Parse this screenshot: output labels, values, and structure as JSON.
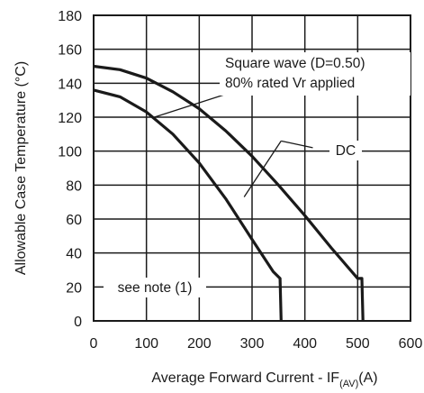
{
  "chart_data": {
    "type": "line",
    "title": "",
    "xlabel_main": "Average Forward Current - IF",
    "xlabel_sub": "(AV)",
    "xlabel_unit": "(A)",
    "ylabel": "Allowable Case Temperature  (°C)",
    "xlim": [
      0,
      600
    ],
    "ylim": [
      0,
      180
    ],
    "xticks": [
      "0",
      "100",
      "200",
      "300",
      "400",
      "500",
      "600"
    ],
    "yticks": [
      "0",
      "20",
      "40",
      "60",
      "80",
      "100",
      "120",
      "140",
      "160",
      "180"
    ],
    "grid": true,
    "series": [
      {
        "name": "DC",
        "color": "#1a1a1a",
        "points": [
          [
            0,
            150
          ],
          [
            50,
            148
          ],
          [
            100,
            143
          ],
          [
            150,
            135
          ],
          [
            200,
            125
          ],
          [
            250,
            112
          ],
          [
            300,
            97
          ],
          [
            350,
            80
          ],
          [
            400,
            62
          ],
          [
            450,
            43
          ],
          [
            500,
            25
          ],
          [
            508,
            25
          ],
          [
            510,
            0
          ]
        ]
      },
      {
        "name": "Square wave (D=0.50)",
        "color": "#1a1a1a",
        "points": [
          [
            0,
            136
          ],
          [
            50,
            132
          ],
          [
            100,
            123
          ],
          [
            150,
            110
          ],
          [
            200,
            93
          ],
          [
            250,
            72
          ],
          [
            300,
            48
          ],
          [
            340,
            29
          ],
          [
            353,
            25
          ],
          [
            355,
            0
          ]
        ]
      }
    ],
    "annotations": {
      "square_line1": "Square wave (D=0.50)",
      "square_line2": "80% rated Vr applied",
      "dc": "DC",
      "note": "see note (1)"
    }
  }
}
